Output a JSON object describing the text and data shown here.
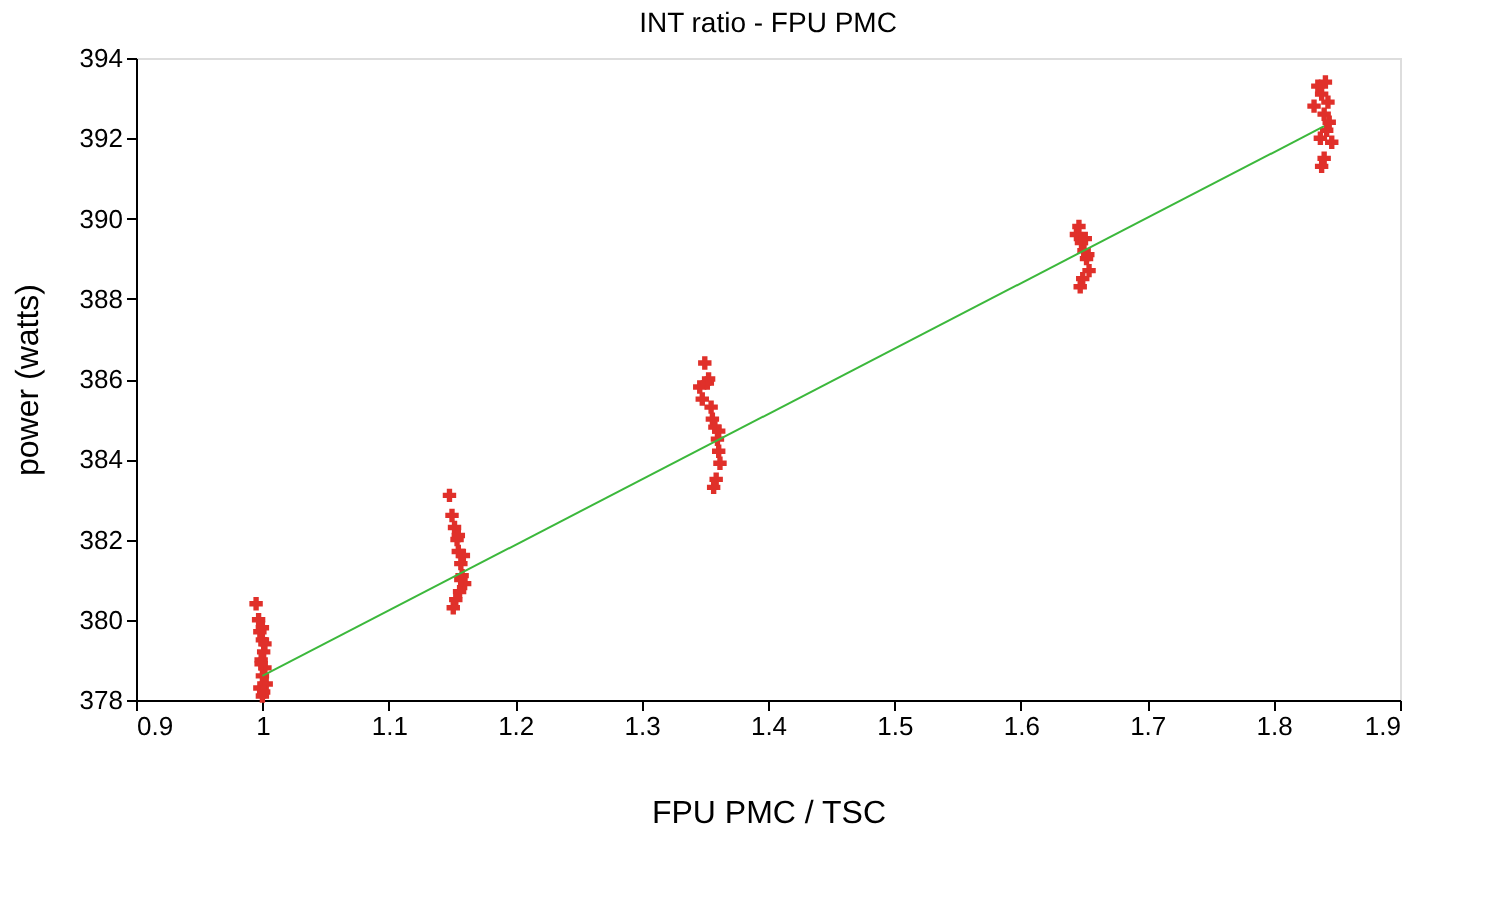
{
  "chart_data": {
    "type": "scatter",
    "title": "INT ratio  -  FPU PMC",
    "xlabel": "FPU PMC / TSC",
    "ylabel": "power (watts)",
    "xlim": [
      0.9,
      1.9
    ],
    "xticks": [
      0.9,
      1,
      1.1,
      1.2,
      1.3,
      1.4,
      1.5,
      1.6,
      1.7,
      1.8,
      1.9
    ],
    "ylim": [
      378,
      394
    ],
    "yticks": [
      378,
      380,
      382,
      384,
      386,
      388,
      390,
      392,
      394
    ],
    "grid": false,
    "marker": "cross",
    "series": [
      {
        "color": "#e0302a",
        "x": [
          0.995,
          0.997,
          0.998,
          1.0,
          1.001,
          0.999,
          1.002,
          1.0,
          1.003,
          0.998,
          1.001,
          1.0,
          1.002,
          0.999,
          1.0,
          1.148,
          1.15,
          1.152,
          1.154,
          1.155,
          1.157,
          1.158,
          1.16,
          1.156,
          1.153,
          1.151,
          1.159,
          1.155,
          1.157,
          1.346,
          1.348,
          1.35,
          1.352,
          1.355,
          1.356,
          1.358,
          1.36,
          1.361,
          1.362,
          1.359,
          1.357,
          1.353,
          1.361,
          1.644,
          1.646,
          1.648,
          1.65,
          1.652,
          1.654,
          1.649,
          1.647,
          1.651,
          1.653,
          1.832,
          1.835,
          1.838,
          1.84,
          1.842,
          1.844,
          1.846,
          1.84,
          1.838,
          1.843,
          1.841,
          1.837
        ],
        "values": [
          380.4,
          380.0,
          379.7,
          379.5,
          379.2,
          379.0,
          378.8,
          378.6,
          378.4,
          378.3,
          378.2,
          379.8,
          379.4,
          378.9,
          378.1,
          383.1,
          382.6,
          382.3,
          382.0,
          381.7,
          381.4,
          381.1,
          380.9,
          380.7,
          380.5,
          380.3,
          381.6,
          382.1,
          381.0,
          385.8,
          385.5,
          386.4,
          385.9,
          385.3,
          385.0,
          384.8,
          384.5,
          384.2,
          383.9,
          383.5,
          383.3,
          386.0,
          384.7,
          389.6,
          389.8,
          389.4,
          389.2,
          389.0,
          388.7,
          388.5,
          388.3,
          389.5,
          389.1,
          392.8,
          393.3,
          393.1,
          392.6,
          392.2,
          392.4,
          391.9,
          391.5,
          391.3,
          392.9,
          393.4,
          392.0
        ]
      },
      {
        "type": "line",
        "color": "#3cb83c",
        "marker": "none",
        "line_style": "solid",
        "x": [
          1.0,
          1.84
        ],
        "values": [
          378.6,
          392.3
        ]
      }
    ]
  }
}
